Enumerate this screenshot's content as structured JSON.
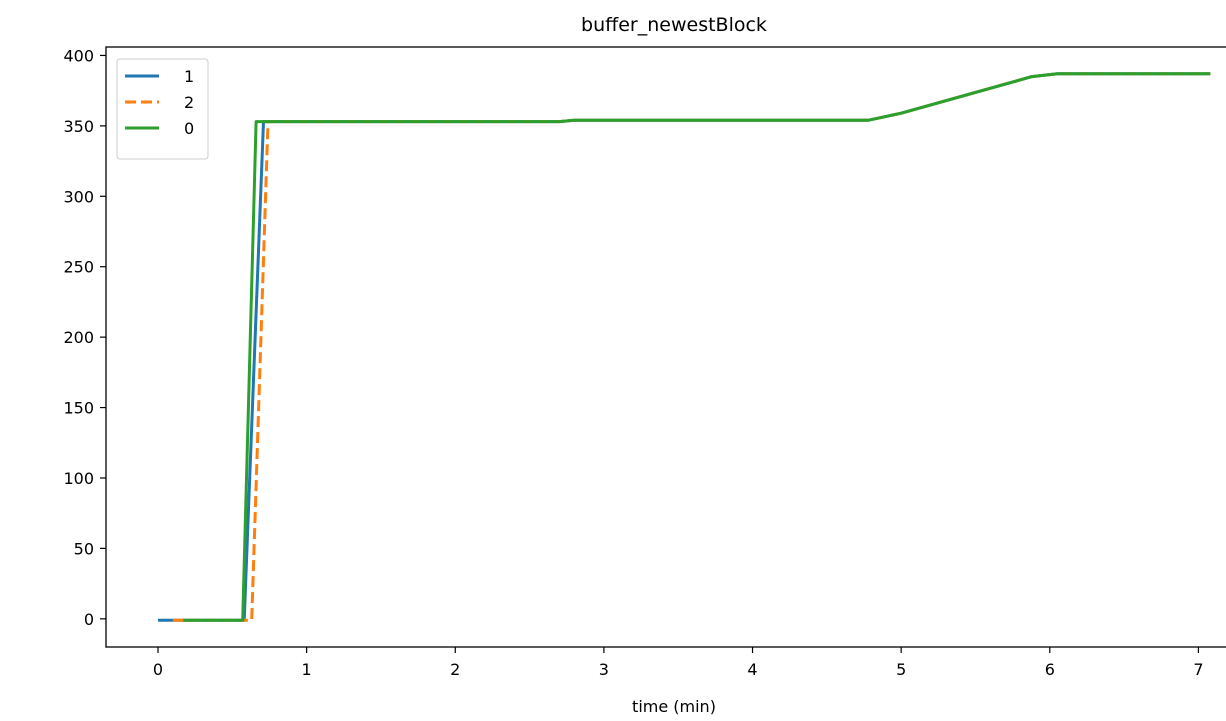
{
  "chart_data": {
    "type": "line",
    "title": "buffer_newestBlock",
    "xlabel": "time (min)",
    "ylabel": "",
    "xlim": [
      -0.35,
      7.3
    ],
    "ylim": [
      -20,
      406
    ],
    "x_ticks": [
      0,
      1,
      2,
      3,
      4,
      5,
      6,
      7
    ],
    "y_ticks": [
      0,
      50,
      100,
      150,
      200,
      250,
      300,
      350,
      400
    ],
    "legend": {
      "placement": "top-left",
      "entries": [
        "1",
        "2",
        "0"
      ]
    },
    "grid": false,
    "series": [
      {
        "name": "1",
        "color": "#1f77b4",
        "dash": "solid",
        "points": [
          [
            0,
            -1
          ],
          [
            0.58,
            -1
          ],
          [
            0.71,
            353
          ],
          [
            2.7,
            353
          ],
          [
            2.8,
            354
          ],
          [
            4.78,
            354
          ],
          [
            5.0,
            359
          ],
          [
            5.88,
            385
          ],
          [
            6.05,
            387
          ],
          [
            7.08,
            387
          ]
        ]
      },
      {
        "name": "2",
        "color": "#ff7f0e",
        "dash": "dashed",
        "points": [
          [
            0.1,
            -1
          ],
          [
            0.63,
            -1
          ],
          [
            0.74,
            353
          ],
          [
            2.7,
            353
          ],
          [
            2.8,
            354
          ],
          [
            4.78,
            354
          ],
          [
            5.0,
            359
          ],
          [
            5.88,
            385
          ],
          [
            6.05,
            387
          ],
          [
            7.08,
            387
          ]
        ]
      },
      {
        "name": "0",
        "color": "#2ca02c",
        "dash": "solid",
        "points": [
          [
            0.17,
            -1
          ],
          [
            0.57,
            -1
          ],
          [
            0.66,
            353
          ],
          [
            2.7,
            353
          ],
          [
            2.8,
            354
          ],
          [
            4.78,
            354
          ],
          [
            5.0,
            359
          ],
          [
            5.88,
            385
          ],
          [
            6.05,
            387
          ],
          [
            7.08,
            387
          ]
        ]
      }
    ]
  }
}
